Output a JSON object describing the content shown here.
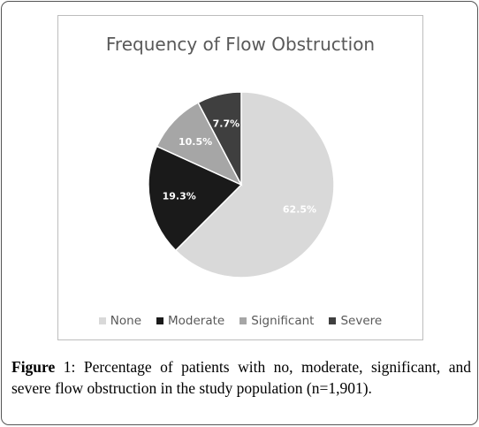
{
  "figure": {
    "caption_label": "Figure",
    "caption_number": "1:",
    "caption_text": "Percentage of patients with no, moderate, significant, and severe flow obstruction in the study population (n=1,901)."
  },
  "chart_data": {
    "type": "pie",
    "title": "Frequency of Flow Obstruction",
    "legend_position": "bottom",
    "slices": [
      {
        "name": "None",
        "value": 62.5,
        "label": "62.5%",
        "color": "#d9d9d9",
        "label_color": "#ffffff"
      },
      {
        "name": "Moderate",
        "value": 19.3,
        "label": "19.3%",
        "color": "#1a1a1a",
        "label_color": "#ffffff"
      },
      {
        "name": "Significant",
        "value": 10.5,
        "label": "10.5%",
        "color": "#a6a6a6",
        "label_color": "#ffffff"
      },
      {
        "name": "Severe",
        "value": 7.7,
        "label": "7.7%",
        "color": "#3f3f3f",
        "label_color": "#ffffff"
      }
    ]
  }
}
